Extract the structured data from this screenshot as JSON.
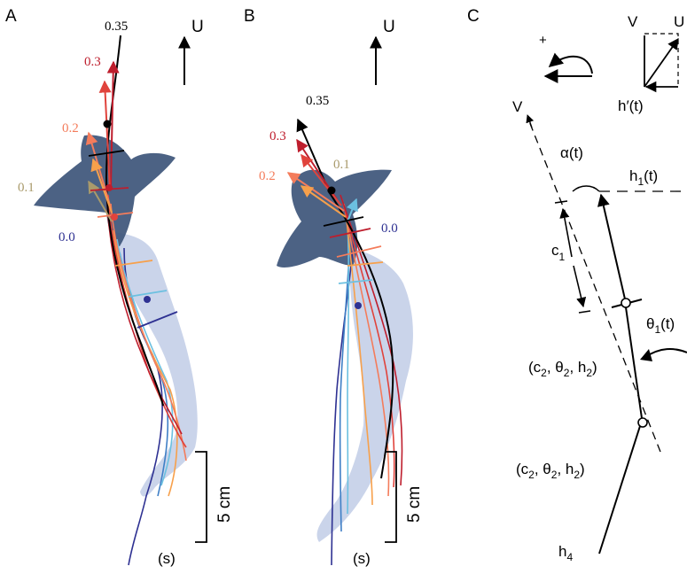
{
  "panels": {
    "A": {
      "label": "A",
      "flow_label": "U",
      "time_labels": {
        "t0": "0.0",
        "t1": "0.1",
        "t2": "0.2",
        "t3": "0.3",
        "t4": "0.35"
      },
      "scale_label": "5 cm",
      "unit_label": "(s)"
    },
    "B": {
      "label": "B",
      "flow_label": "U",
      "time_labels": {
        "t0": "0.0",
        "t1": "0.1",
        "t2": "0.2",
        "t3": "0.3",
        "t4": "0.35"
      },
      "scale_label": "5 cm",
      "unit_label": "(s)"
    },
    "C": {
      "label": "C",
      "plus_label": "+",
      "v_top": "V",
      "u_top": "U",
      "hprime": "h′(t)",
      "v_axis": "V",
      "alpha": "α(t)",
      "h1": "h",
      "h1_sub": "1",
      "h1_suffix": "(t)",
      "c1": "c",
      "c1_sub": "1",
      "theta1": "θ",
      "theta1_sub": "1",
      "theta1_suffix": "(t)",
      "seg2": {
        "p1": "(c",
        "s1": "2",
        "p2": ", θ",
        "s2": "2",
        "p3": ", h",
        "s3": "2",
        "p4": ")"
      },
      "seg3": {
        "p1": "(c",
        "s1": "2",
        "p2": ", θ",
        "s2": "2",
        "p3": ", h",
        "s3": "2",
        "p4": ")"
      },
      "h4": "h",
      "h4_sub": "4"
    }
  },
  "colors": {
    "t0": "#2e3192",
    "t1": "#a99a6b",
    "t2": "#f47c5b",
    "t3": "#be1e2d",
    "t4": "#000000",
    "blue_mid": "#3f7fc6",
    "cyan": "#6cc0e0",
    "orange": "#f7a04b",
    "fish_body": "#3d5579",
    "fish_tail": "#b8c6e3"
  }
}
